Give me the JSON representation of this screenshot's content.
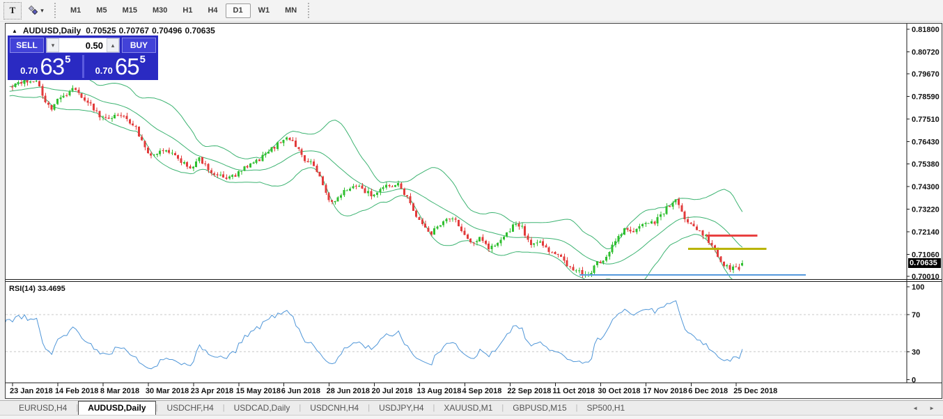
{
  "toolbar": {
    "text_tool_label": "T",
    "timeframes": [
      "M1",
      "M5",
      "M15",
      "M30",
      "H1",
      "H4",
      "D1",
      "W1",
      "MN"
    ],
    "active_timeframe": "D1"
  },
  "icons": {
    "collapse_arrow": "▲",
    "dropdown": "▾",
    "volume_down": "▾",
    "volume_up": "▴",
    "tab_scroll_left": "◄",
    "tab_scroll_right": "►"
  },
  "chart_header": {
    "symbol": "AUDUSD,Daily",
    "open": "0.70525",
    "high": "0.70767",
    "low": "0.70496",
    "close": "0.70635"
  },
  "trade_panel": {
    "sell_label": "SELL",
    "buy_label": "BUY",
    "volume": "0.50",
    "sell_price": {
      "small": "0.70",
      "big": "63",
      "sup": "5"
    },
    "buy_price": {
      "small": "0.70",
      "big": "65",
      "sup": "5"
    }
  },
  "price_axis": {
    "ticks": [
      "0.81800",
      "0.80720",
      "0.79670",
      "0.78590",
      "0.77510",
      "0.76430",
      "0.75380",
      "0.74300",
      "0.73220",
      "0.72140",
      "0.71060",
      "0.70010"
    ],
    "current": "0.70635"
  },
  "rsi_label": "RSI(14) 33.4695",
  "rsi_axis": {
    "ticks": [
      "100",
      "70",
      "30",
      "0"
    ]
  },
  "time_axis": [
    "23 Jan 2018",
    "14 Feb 2018",
    "8 Mar 2018",
    "30 Mar 2018",
    "23 Apr 2018",
    "15 May 2018",
    "6 Jun 2018",
    "28 Jun 2018",
    "20 Jul 2018",
    "13 Aug 2018",
    "4 Sep 2018",
    "22 Sep 2018",
    "11 Oct 2018",
    "30 Oct 2018",
    "17 Nov 2018",
    "6 Dec 2018",
    "25 Dec 2018"
  ],
  "tabs": {
    "items": [
      "EURUSD,H4",
      "AUDUSD,Daily",
      "USDCHF,H4",
      "USDCAD,Daily",
      "USDCNH,H4",
      "USDJPY,H4",
      "XAUUSD,M1",
      "GBPUSD,M15",
      "SP500,H1"
    ],
    "active": "AUDUSD,Daily"
  },
  "chart_data": {
    "type": "candlestick",
    "symbol": "AUDUSD",
    "timeframe": "Daily",
    "title": "AUDUSD,Daily",
    "ohlc_last": {
      "open": 0.70525,
      "high": 0.70767,
      "low": 0.70496,
      "close": 0.70635
    },
    "y_ticks": [
      0.818,
      0.8072,
      0.7967,
      0.7859,
      0.7751,
      0.7643,
      0.7538,
      0.743,
      0.7322,
      0.7214,
      0.7106,
      0.7001
    ],
    "price_range_visible": [
      0.6991,
      0.8207
    ],
    "grid": false,
    "bars_total": 243,
    "pre_bars": 20,
    "bars_per_label": 15,
    "close_anchors": [
      [
        -20,
        0.7872
      ],
      [
        -14,
        0.7896
      ],
      [
        -8,
        0.7868
      ],
      [
        -4,
        0.789
      ],
      [
        0,
        0.7902
      ],
      [
        4,
        0.7934
      ],
      [
        8,
        0.7926
      ],
      [
        11,
        0.7838
      ],
      [
        13,
        0.78
      ],
      [
        16,
        0.7856
      ],
      [
        20,
        0.789
      ],
      [
        23,
        0.7862
      ],
      [
        26,
        0.782
      ],
      [
        29,
        0.7768
      ],
      [
        32,
        0.7752
      ],
      [
        35,
        0.7774
      ],
      [
        38,
        0.7752
      ],
      [
        41,
        0.7712
      ],
      [
        43,
        0.764
      ],
      [
        45,
        0.7585
      ],
      [
        47,
        0.7572
      ],
      [
        50,
        0.7605
      ],
      [
        53,
        0.758
      ],
      [
        56,
        0.7552
      ],
      [
        59,
        0.752
      ],
      [
        62,
        0.7558
      ],
      [
        65,
        0.7512
      ],
      [
        68,
        0.748
      ],
      [
        71,
        0.7468
      ],
      [
        74,
        0.7482
      ],
      [
        77,
        0.7516
      ],
      [
        80,
        0.754
      ],
      [
        83,
        0.7572
      ],
      [
        86,
        0.7608
      ],
      [
        89,
        0.7642
      ],
      [
        91,
        0.7672
      ],
      [
        94,
        0.7625
      ],
      [
        97,
        0.756
      ],
      [
        100,
        0.7528
      ],
      [
        102,
        0.7475
      ],
      [
        104,
        0.7398
      ],
      [
        106,
        0.7348
      ],
      [
        108,
        0.7375
      ],
      [
        111,
        0.7415
      ],
      [
        114,
        0.7438
      ],
      [
        117,
        0.7408
      ],
      [
        119,
        0.739
      ],
      [
        122,
        0.7412
      ],
      [
        125,
        0.7435
      ],
      [
        128,
        0.7442
      ],
      [
        130,
        0.74
      ],
      [
        132,
        0.7355
      ],
      [
        134,
        0.7285
      ],
      [
        137,
        0.7228
      ],
      [
        139,
        0.7208
      ],
      [
        141,
        0.7232
      ],
      [
        143,
        0.7272
      ],
      [
        146,
        0.7288
      ],
      [
        149,
        0.7215
      ],
      [
        152,
        0.7158
      ],
      [
        155,
        0.7185
      ],
      [
        158,
        0.7128
      ],
      [
        161,
        0.7165
      ],
      [
        164,
        0.7212
      ],
      [
        167,
        0.7252
      ],
      [
        169,
        0.7232
      ],
      [
        172,
        0.7148
      ],
      [
        175,
        0.7165
      ],
      [
        179,
        0.7112
      ],
      [
        182,
        0.7085
      ],
      [
        185,
        0.7048
      ],
      [
        188,
        0.7022
      ],
      [
        191,
        0.701
      ],
      [
        194,
        0.7062
      ],
      [
        197,
        0.7098
      ],
      [
        200,
        0.7168
      ],
      [
        203,
        0.7228
      ],
      [
        205,
        0.7205
      ],
      [
        208,
        0.7242
      ],
      [
        211,
        0.7262
      ],
      [
        213,
        0.7252
      ],
      [
        215,
        0.7295
      ],
      [
        218,
        0.7338
      ],
      [
        220,
        0.7358
      ],
      [
        222,
        0.7302
      ],
      [
        224,
        0.7262
      ],
      [
        227,
        0.7222
      ],
      [
        230,
        0.7188
      ],
      [
        232,
        0.7148
      ],
      [
        234,
        0.7098
      ],
      [
        236,
        0.7058
      ],
      [
        238,
        0.7036
      ],
      [
        240,
        0.7048
      ],
      [
        241,
        0.7038
      ],
      [
        242,
        0.70635
      ]
    ],
    "indicators": {
      "bollinger": {
        "period": 20,
        "deviation": 2,
        "color": "#3cb371"
      },
      "rsi": {
        "period": 14,
        "last_value": 33.4695,
        "levels": [
          30,
          70
        ],
        "range": [
          0,
          100
        ],
        "color": "#4f96d8"
      }
    },
    "hlines": [
      {
        "name": "resistance-red",
        "color": "#e84040",
        "price": 0.7195,
        "from_bar": 230,
        "to_bar": 247,
        "width": 3
      },
      {
        "name": "resistance-yellow",
        "color": "#b9b400",
        "price": 0.7133,
        "from_bar": 224,
        "to_bar": 250,
        "width": 3
      },
      {
        "name": "support-blue",
        "color": "#5599dd",
        "price": 0.7008,
        "from_bar": 188,
        "to_bar": 263,
        "width": 2
      }
    ],
    "colors": {
      "bull": "#2fbf2f",
      "bear": "#e23b3b",
      "levels_dashed": "#c8c8c8",
      "axis_text": "#111111"
    }
  }
}
